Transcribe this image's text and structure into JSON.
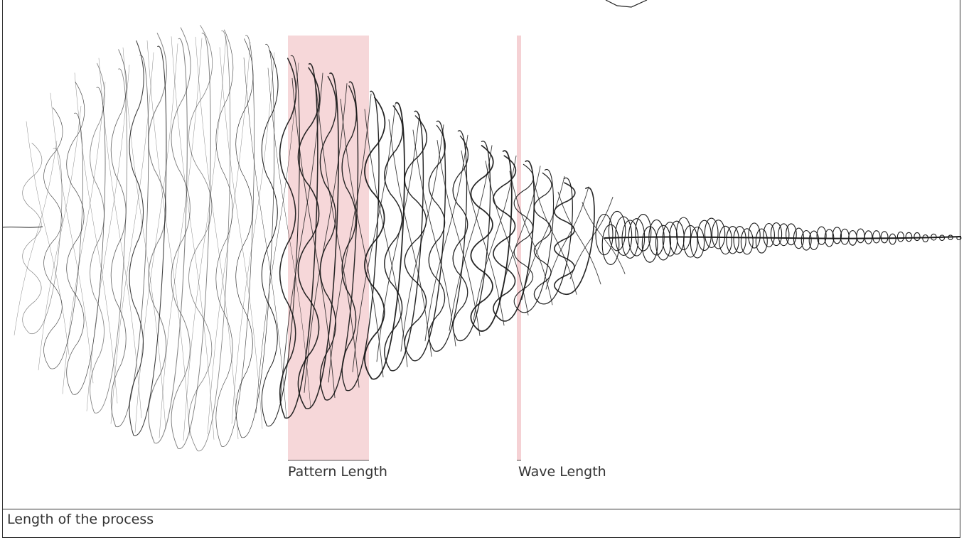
{
  "annotations": {
    "pattern_length": "Pattern Length",
    "wave_length": "Wave Length"
  },
  "caption": "Length of the process",
  "colors": {
    "highlight": "#f3c9cc",
    "ink": "#1a1a1a",
    "frame": "#333333"
  }
}
